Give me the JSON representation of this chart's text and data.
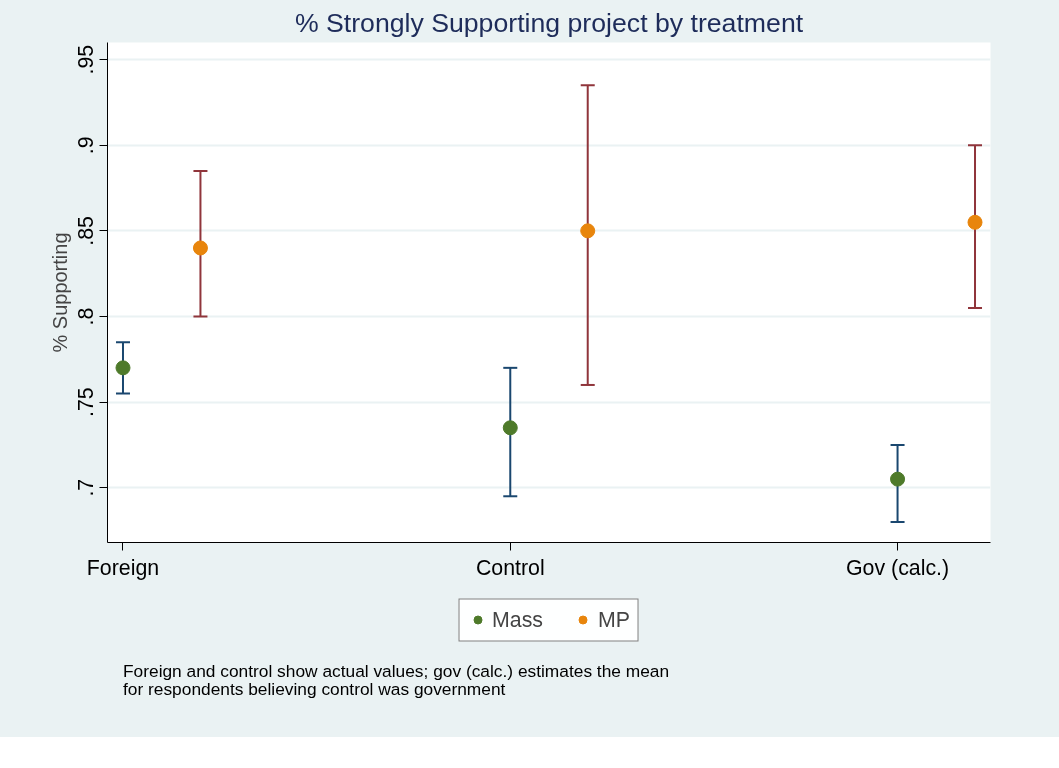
{
  "chart_data": {
    "type": "scatter",
    "title": "% Strongly Supporting project by treatment",
    "ylabel": "% Supporting",
    "categories": [
      "Foreign",
      "Control",
      "Gov (calc.)"
    ],
    "series": [
      {
        "name": "Mass",
        "color": "#4e7a2a",
        "values": [
          0.77,
          0.735,
          0.705
        ],
        "errors": [
          [
            0.755,
            0.785
          ],
          [
            0.695,
            0.77
          ],
          [
            0.68,
            0.725
          ]
        ]
      },
      {
        "name": "MP",
        "color": "#e8850c",
        "values": [
          0.84,
          0.85,
          0.855
        ],
        "errors": [
          [
            0.8,
            0.885
          ],
          [
            0.76,
            0.935
          ],
          [
            0.805,
            0.9
          ]
        ]
      }
    ],
    "ylim": [
      0.668,
      0.96
    ],
    "yticks": [
      {
        "value": 0.7,
        "label": ".7"
      },
      {
        "value": 0.75,
        "label": ".75"
      },
      {
        "value": 0.8,
        "label": ".8"
      },
      {
        "value": 0.85,
        "label": ".85"
      },
      {
        "value": 0.9,
        "label": ".9"
      },
      {
        "value": 0.95,
        "label": ".95"
      }
    ],
    "grid": "y",
    "legend": "bottom",
    "marker": "circle",
    "annotations": [
      "Foreign and control show actual values; gov (calc.) estimates the mean\nfor respondents believing control was government"
    ]
  }
}
